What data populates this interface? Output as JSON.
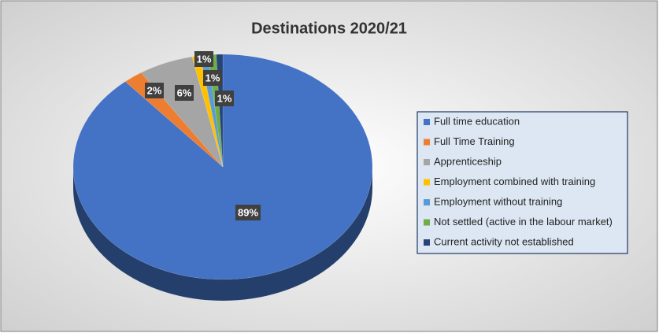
{
  "chart_data": {
    "type": "pie",
    "title": "Destinations 2020/21",
    "categories": [
      "Full time education",
      "Full Time Training",
      "Apprenticeship",
      "Employment combined with training",
      "Employment without training",
      "Not settled (active in the labour market)",
      "Current activity not established"
    ],
    "values": [
      88.7,
      2.1,
      5.9,
      0.9,
      0.8,
      0.9,
      0.7
    ],
    "value_labels": [
      "89%",
      "2%",
      "6%",
      "1%",
      "1%",
      "1%",
      null
    ],
    "colors": [
      "#4472c4",
      "#ed7d31",
      "#a5a5a5",
      "#ffc000",
      "#5b9bd5",
      "#70ad47",
      "#264478"
    ],
    "legend": "right"
  }
}
